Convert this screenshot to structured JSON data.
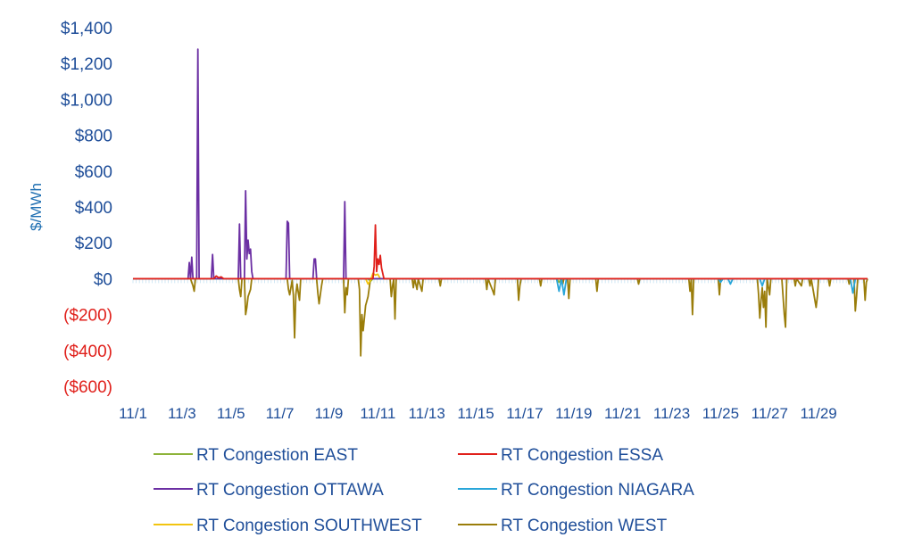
{
  "chart_data": {
    "type": "line",
    "title": "",
    "xlabel": "",
    "ylabel": "$/MWh",
    "ylim": [
      -600,
      1400
    ],
    "yticks": [
      1400,
      1200,
      1000,
      800,
      600,
      400,
      200,
      0,
      -200,
      -400,
      -600
    ],
    "ytick_labels": [
      "$1,400",
      "$1,200",
      "$1,000",
      "$800",
      "$600",
      "$400",
      "$200",
      "$0",
      "($200)",
      "($400)",
      "($600)"
    ],
    "xlim": [
      1,
      31
    ],
    "x_ticks": [
      1,
      3,
      5,
      7,
      9,
      11,
      13,
      15,
      17,
      19,
      21,
      23,
      25,
      27,
      29
    ],
    "x_tick_labels": [
      "11/1",
      "11/3",
      "11/5",
      "11/7",
      "11/9",
      "11/11",
      "11/13",
      "11/15",
      "11/17",
      "11/19",
      "11/21",
      "11/23",
      "11/25",
      "11/27",
      "11/29"
    ],
    "positive_color": "#1f4e99",
    "negative_color": "#e0201b",
    "series": [
      {
        "name": "RT Congestion EAST",
        "color": "#8db33a",
        "points": [
          [
            1,
            0
          ],
          [
            10.6,
            0
          ],
          [
            10.7,
            -15
          ],
          [
            10.8,
            0
          ],
          [
            18.3,
            0
          ],
          [
            18.4,
            -20
          ],
          [
            18.5,
            0
          ],
          [
            31,
            0
          ]
        ]
      },
      {
        "name": "RT Congestion ESSA",
        "color": "#e0201b",
        "points": [
          [
            1,
            0
          ],
          [
            4.3,
            0
          ],
          [
            4.4,
            15
          ],
          [
            4.5,
            5
          ],
          [
            4.6,
            10
          ],
          [
            4.7,
            0
          ],
          [
            10.8,
            0
          ],
          [
            10.85,
            70
          ],
          [
            10.9,
            300
          ],
          [
            10.95,
            40
          ],
          [
            11.0,
            110
          ],
          [
            11.05,
            80
          ],
          [
            11.1,
            130
          ],
          [
            11.15,
            60
          ],
          [
            11.25,
            0
          ],
          [
            31,
            0
          ]
        ]
      },
      {
        "name": "RT Congestion OTTAWA",
        "color": "#6b2fa3",
        "points": [
          [
            1,
            0
          ],
          [
            3.25,
            0
          ],
          [
            3.3,
            90
          ],
          [
            3.35,
            0
          ],
          [
            3.4,
            120
          ],
          [
            3.45,
            0
          ],
          [
            3.6,
            0
          ],
          [
            3.65,
            1280
          ],
          [
            3.7,
            0
          ],
          [
            4.2,
            0
          ],
          [
            4.25,
            135
          ],
          [
            4.3,
            0
          ],
          [
            5.3,
            0
          ],
          [
            5.35,
            305
          ],
          [
            5.4,
            0
          ],
          [
            5.55,
            0
          ],
          [
            5.6,
            490
          ],
          [
            5.65,
            110
          ],
          [
            5.7,
            215
          ],
          [
            5.75,
            140
          ],
          [
            5.8,
            165
          ],
          [
            5.85,
            40
          ],
          [
            5.9,
            0
          ],
          [
            7.25,
            0
          ],
          [
            7.3,
            320
          ],
          [
            7.35,
            310
          ],
          [
            7.4,
            0
          ],
          [
            8.35,
            0
          ],
          [
            8.4,
            110
          ],
          [
            8.45,
            110
          ],
          [
            8.5,
            0
          ],
          [
            9.6,
            0
          ],
          [
            9.65,
            430
          ],
          [
            9.7,
            0
          ],
          [
            31,
            0
          ]
        ]
      },
      {
        "name": "RT Congestion NIAGARA",
        "color": "#29a6d9",
        "points": [
          [
            1,
            0
          ],
          [
            18.3,
            0
          ],
          [
            18.4,
            -70
          ],
          [
            18.5,
            0
          ],
          [
            18.6,
            -90
          ],
          [
            18.7,
            0
          ],
          [
            24.9,
            0
          ],
          [
            25.0,
            -20
          ],
          [
            25.1,
            0
          ],
          [
            25.3,
            0
          ],
          [
            25.4,
            -30
          ],
          [
            25.5,
            0
          ],
          [
            26.6,
            0
          ],
          [
            26.7,
            -40
          ],
          [
            26.8,
            0
          ],
          [
            30.3,
            0
          ],
          [
            30.4,
            -80
          ],
          [
            30.5,
            0
          ],
          [
            31,
            0
          ]
        ]
      },
      {
        "name": "RT Congestion SOUTHWEST",
        "color": "#f2c40f",
        "points": [
          [
            1,
            0
          ],
          [
            10.5,
            0
          ],
          [
            10.6,
            -30
          ],
          [
            10.7,
            -10
          ],
          [
            10.8,
            30
          ],
          [
            10.9,
            20
          ],
          [
            11.0,
            25
          ],
          [
            11.1,
            0
          ],
          [
            31,
            0
          ]
        ]
      },
      {
        "name": "RT Congestion WEST",
        "color": "#9a7d0a",
        "points": [
          [
            1,
            0
          ],
          [
            3.35,
            0
          ],
          [
            3.45,
            -40
          ],
          [
            3.5,
            -70
          ],
          [
            3.55,
            0
          ],
          [
            5.3,
            0
          ],
          [
            5.35,
            -60
          ],
          [
            5.4,
            -100
          ],
          [
            5.45,
            0
          ],
          [
            5.55,
            0
          ],
          [
            5.6,
            -200
          ],
          [
            5.65,
            -160
          ],
          [
            5.7,
            -100
          ],
          [
            5.8,
            -60
          ],
          [
            5.85,
            0
          ],
          [
            7.3,
            0
          ],
          [
            7.35,
            -60
          ],
          [
            7.4,
            -90
          ],
          [
            7.5,
            -10
          ],
          [
            7.55,
            -90
          ],
          [
            7.6,
            -330
          ],
          [
            7.65,
            -90
          ],
          [
            7.7,
            -30
          ],
          [
            7.8,
            -120
          ],
          [
            7.85,
            0
          ],
          [
            8.5,
            0
          ],
          [
            8.55,
            -80
          ],
          [
            8.6,
            -140
          ],
          [
            8.65,
            -90
          ],
          [
            8.7,
            -40
          ],
          [
            8.75,
            0
          ],
          [
            9.6,
            0
          ],
          [
            9.65,
            -190
          ],
          [
            9.7,
            -50
          ],
          [
            9.75,
            -90
          ],
          [
            9.8,
            0
          ],
          [
            10.2,
            0
          ],
          [
            10.25,
            -60
          ],
          [
            10.3,
            -430
          ],
          [
            10.35,
            -200
          ],
          [
            10.4,
            -290
          ],
          [
            10.5,
            -150
          ],
          [
            10.6,
            -100
          ],
          [
            10.7,
            0
          ],
          [
            11.5,
            0
          ],
          [
            11.55,
            -100
          ],
          [
            11.6,
            -40
          ],
          [
            11.65,
            0
          ],
          [
            11.7,
            -225
          ],
          [
            11.75,
            0
          ],
          [
            12.4,
            0
          ],
          [
            12.45,
            -50
          ],
          [
            12.5,
            0
          ],
          [
            12.6,
            -60
          ],
          [
            12.65,
            0
          ],
          [
            12.8,
            -70
          ],
          [
            12.85,
            0
          ],
          [
            13.5,
            0
          ],
          [
            13.55,
            -40
          ],
          [
            13.6,
            0
          ],
          [
            15.4,
            0
          ],
          [
            15.45,
            -60
          ],
          [
            15.5,
            0
          ],
          [
            15.7,
            -70
          ],
          [
            15.75,
            -90
          ],
          [
            15.8,
            0
          ],
          [
            16.7,
            0
          ],
          [
            16.75,
            -120
          ],
          [
            16.8,
            -40
          ],
          [
            16.85,
            0
          ],
          [
            17.6,
            0
          ],
          [
            17.65,
            -40
          ],
          [
            17.7,
            0
          ],
          [
            18.5,
            0
          ],
          [
            18.55,
            -30
          ],
          [
            18.6,
            0
          ],
          [
            18.75,
            0
          ],
          [
            18.8,
            -110
          ],
          [
            18.85,
            0
          ],
          [
            19.9,
            0
          ],
          [
            19.95,
            -70
          ],
          [
            20.0,
            0
          ],
          [
            21.6,
            0
          ],
          [
            21.65,
            -30
          ],
          [
            21.7,
            0
          ],
          [
            23.7,
            0
          ],
          [
            23.75,
            -70
          ],
          [
            23.8,
            0
          ],
          [
            23.85,
            -200
          ],
          [
            23.9,
            0
          ],
          [
            24.9,
            0
          ],
          [
            24.95,
            -90
          ],
          [
            25.0,
            0
          ],
          [
            26.5,
            0
          ],
          [
            26.55,
            -90
          ],
          [
            26.6,
            -220
          ],
          [
            26.65,
            -120
          ],
          [
            26.7,
            -50
          ],
          [
            26.75,
            -160
          ],
          [
            26.8,
            -70
          ],
          [
            26.85,
            -270
          ],
          [
            26.9,
            0
          ],
          [
            27.0,
            -90
          ],
          [
            27.05,
            0
          ],
          [
            27.5,
            0
          ],
          [
            27.55,
            -100
          ],
          [
            27.6,
            -200
          ],
          [
            27.65,
            -270
          ],
          [
            27.7,
            0
          ],
          [
            28.0,
            0
          ],
          [
            28.05,
            -40
          ],
          [
            28.1,
            0
          ],
          [
            28.3,
            -40
          ],
          [
            28.35,
            0
          ],
          [
            28.6,
            0
          ],
          [
            28.65,
            -40
          ],
          [
            28.7,
            0
          ],
          [
            28.9,
            -160
          ],
          [
            28.95,
            -100
          ],
          [
            29.0,
            0
          ],
          [
            29.4,
            0
          ],
          [
            29.45,
            -40
          ],
          [
            29.5,
            0
          ],
          [
            30.2,
            0
          ],
          [
            30.25,
            -30
          ],
          [
            30.3,
            0
          ],
          [
            30.45,
            0
          ],
          [
            30.5,
            -180
          ],
          [
            30.55,
            -100
          ],
          [
            30.6,
            0
          ],
          [
            30.85,
            0
          ],
          [
            30.9,
            -120
          ],
          [
            30.95,
            -20
          ],
          [
            31,
            0
          ]
        ]
      }
    ]
  }
}
